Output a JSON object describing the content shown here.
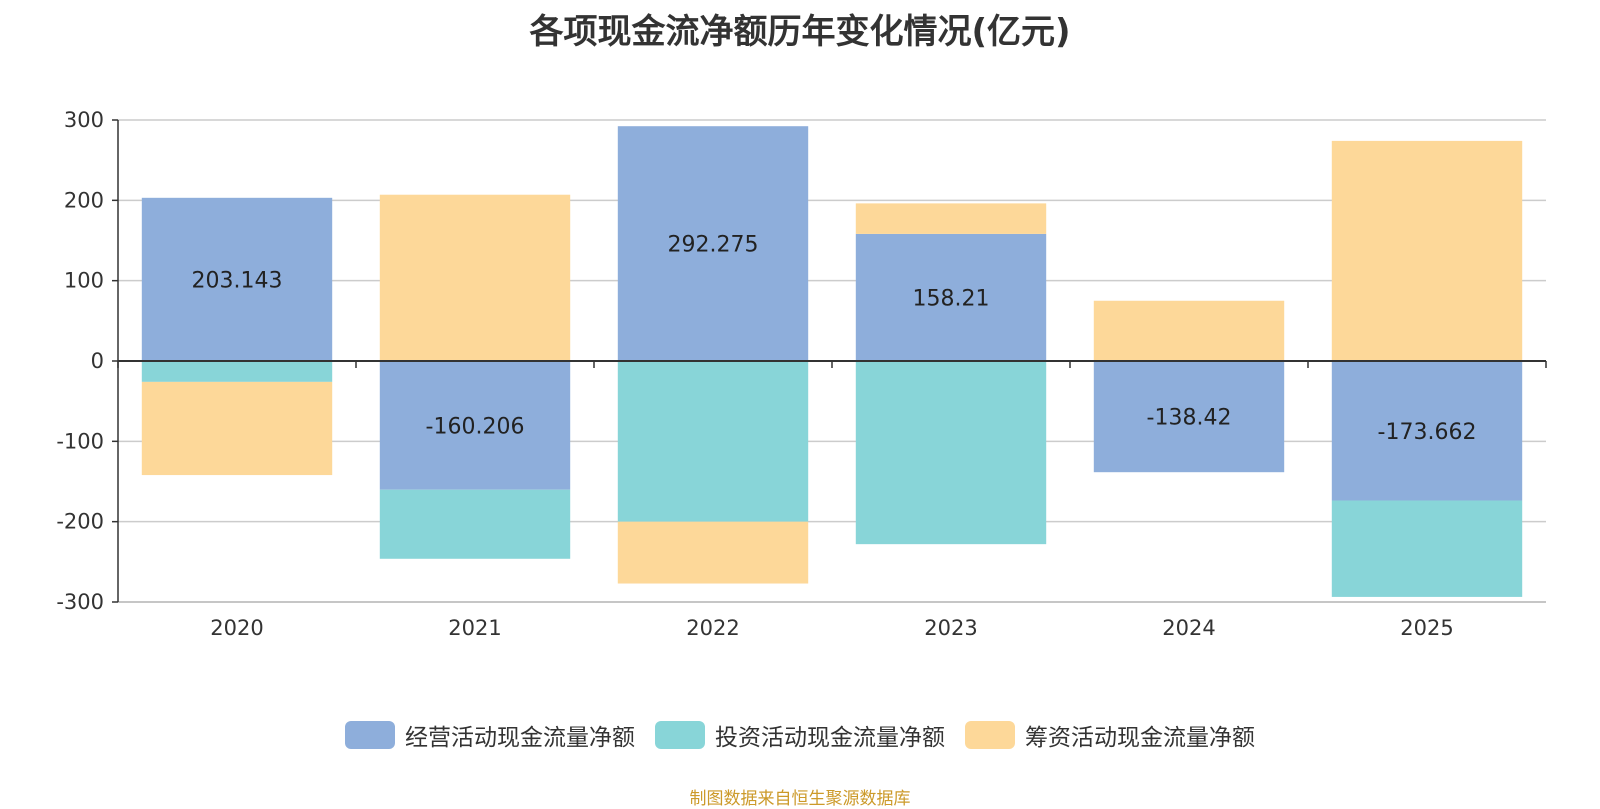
{
  "chart_data": {
    "type": "bar",
    "stacked": true,
    "title": "各项现金流净额历年变化情况(亿元)",
    "categories": [
      "2020",
      "2021",
      "2022",
      "2023",
      "2024",
      "2025"
    ],
    "ylim": [
      -300,
      300
    ],
    "yticks": [
      300,
      200,
      100,
      0,
      -100,
      -200,
      -300
    ],
    "grid": true,
    "legend_position": "bottom",
    "series": [
      {
        "name": "经营活动现金流量净额",
        "color": "#8eaedb",
        "values": [
          203.143,
          -160.206,
          292.275,
          158.21,
          -138.42,
          -173.662
        ],
        "labels": [
          "203.143",
          "-160.206",
          "292.275",
          "158.21",
          "-138.42",
          "-173.662"
        ]
      },
      {
        "name": "投资活动现金流量净额",
        "color": "#88d5d8",
        "values": [
          -26,
          -86,
          -200,
          -228,
          0,
          -120
        ]
      },
      {
        "name": "筹资活动现金流量净额",
        "color": "#fdd899",
        "values": [
          -116,
          207,
          -77,
          38,
          75,
          274
        ]
      }
    ]
  },
  "source": "制图数据来自恒生聚源数据库"
}
